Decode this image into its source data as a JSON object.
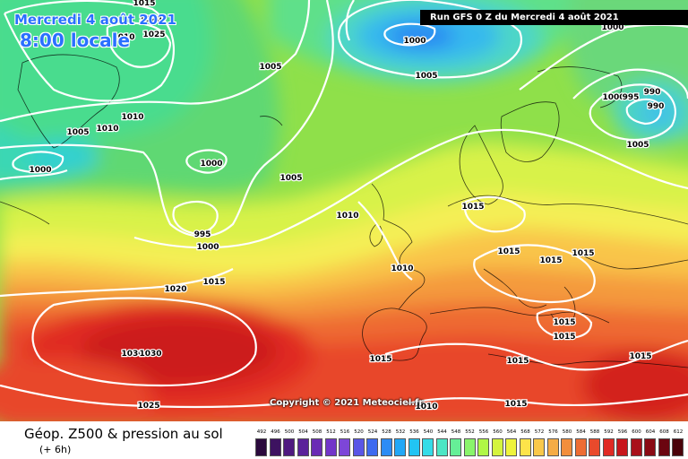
{
  "header": {
    "date_line": "Mercredi 4 août 2021",
    "time_line": "8:00 locale",
    "run_info": "Run GFS 0 Z du Mercredi 4 août 2021"
  },
  "copyright": "Copyright © 2021 Meteociel.fr",
  "footer": {
    "title": "Géop. Z500 & pression au sol",
    "subtitle": "(+ 6h)"
  },
  "legend": {
    "ticks": [
      "492",
      "496",
      "500",
      "504",
      "508",
      "512",
      "516",
      "520",
      "524",
      "528",
      "532",
      "536",
      "540",
      "544",
      "548",
      "552",
      "556",
      "560",
      "564",
      "568",
      "572",
      "576",
      "580",
      "584",
      "588",
      "592",
      "596",
      "600",
      "604",
      "608",
      "612"
    ],
    "colors": [
      "#2b0a3d",
      "#3d1260",
      "#4f1a80",
      "#5b229a",
      "#6a2bb5",
      "#7236c9",
      "#7d46d8",
      "#5a56e6",
      "#3e6af0",
      "#2c8cf5",
      "#22a8f7",
      "#22c4f3",
      "#35dce8",
      "#4de6c5",
      "#66ef97",
      "#8af56b",
      "#b0f746",
      "#d4f43e",
      "#eef43c",
      "#fde44a",
      "#f9c84a",
      "#f5ac45",
      "#f28e3c",
      "#ee6d34",
      "#e94a2c",
      "#e02a24",
      "#c8161c",
      "#a9101a",
      "#8a0a14",
      "#6b0510",
      "#4a020a"
    ]
  },
  "pressure_labels": [
    "1015",
    "1020",
    "1010",
    "1025",
    "1000",
    "1005",
    "1000",
    "1005",
    "1010",
    "1005",
    "1010",
    "1005",
    "1000",
    "1000",
    "995",
    "1000",
    "1015",
    "1020",
    "1010",
    "1015",
    "1010",
    "1015",
    "1015",
    "1015",
    "1015",
    "1015",
    "1015",
    "1015",
    "1015",
    "1030",
    "1030",
    "1015",
    "1025",
    "1010",
    "1015",
    "1010",
    "1000",
    "995",
    "990",
    "990",
    "1005"
  ]
}
